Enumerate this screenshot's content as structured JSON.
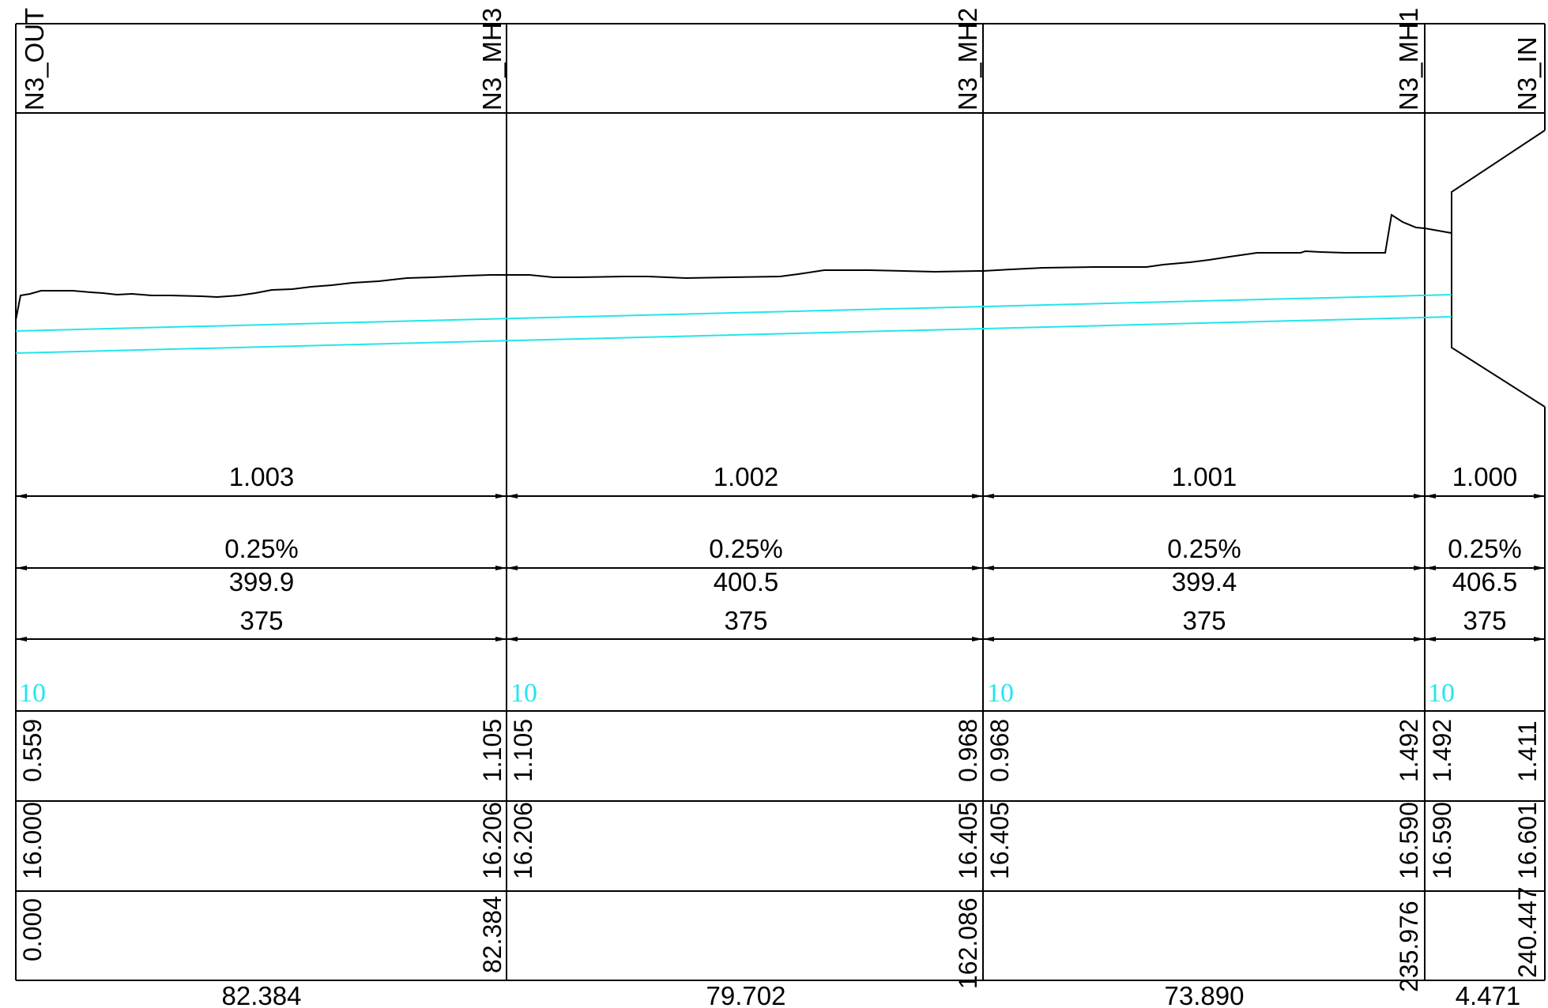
{
  "nodes": [
    "N3_OUT",
    "N3_MH3",
    "N3_MH2",
    "N3_MH1",
    "N3_IN"
  ],
  "segments": [
    {
      "ref": "1.003",
      "gradient": "0.25%",
      "value_a": "399.9",
      "diameter": "375",
      "cyan_label": "10",
      "depth_start": "0.559",
      "depth_end": "1.105",
      "level_start": "16.000",
      "level_end": "16.206",
      "chainage_start": "0.000",
      "chainage_end": "82.384",
      "length": "82.384"
    },
    {
      "ref": "1.002",
      "gradient": "0.25%",
      "value_a": "400.5",
      "diameter": "375",
      "cyan_label": "10",
      "depth_start": "1.105",
      "depth_end": "0.968",
      "level_start": "16.206",
      "level_end": "16.405",
      "chainage_start": "",
      "chainage_end": "162.086",
      "length": "79.702"
    },
    {
      "ref": "1.001",
      "gradient": "0.25%",
      "value_a": "399.4",
      "diameter": "375",
      "cyan_label": "10",
      "depth_start": "0.968",
      "depth_end": "1.492",
      "level_start": "16.405",
      "level_end": "16.590",
      "chainage_start": "",
      "chainage_end": "235.976",
      "length": "73.890"
    },
    {
      "ref": "1.000",
      "gradient": "0.25%",
      "value_a": "406.5",
      "diameter": "375",
      "cyan_label": "10",
      "depth_start": "1.492",
      "depth_end": "1.411",
      "level_start": "16.590",
      "level_end": "16.601",
      "chainage_start": "",
      "chainage_end": "240.447",
      "length": "4.471"
    }
  ],
  "colors": {
    "line": "#000000",
    "pipe": "#22e5ee",
    "background": "#ffffff"
  }
}
